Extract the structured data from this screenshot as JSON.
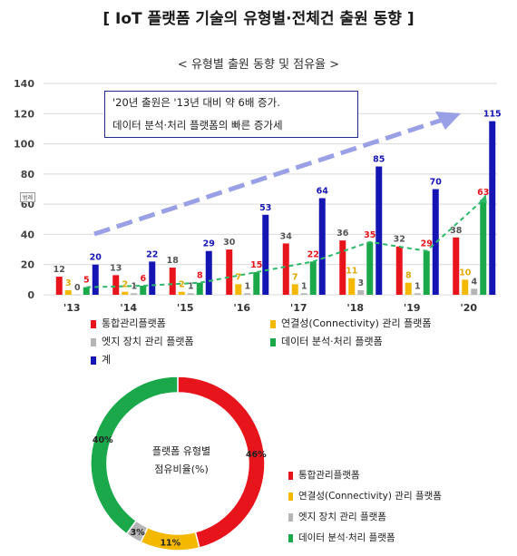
{
  "page": {
    "title": "[ IoT 플랫폼 기술의 유형별·전체건 출원 동향 ]",
    "subtitle": "< 유형별 출원 동향 및 점유율 >",
    "annotation_line1": "'20년 출원은 '13년 대비 약 6배 증가.",
    "annotation_line2": "데이터 분석·처리 플랫폼의 빠른 증가세",
    "small_tag": "범례",
    "pie_center_line1": "플랫폼 유형별",
    "pie_center_line2": "점유비율(%)"
  },
  "colors": {
    "integrated": "#e8141b",
    "connectivity": "#f5b800",
    "edge": "#b5b5b5",
    "analytics": "#1aa84a",
    "total": "#1515b4",
    "trend": "#2db86a",
    "arrow": "#9aa0e6"
  },
  "chart_data": [
    {
      "type": "bar",
      "categories": [
        "'13",
        "'14",
        "'15",
        "'16",
        "'17",
        "'18",
        "'19",
        "'20"
      ],
      "ylim": [
        0,
        140
      ],
      "yticks": [
        0,
        20,
        40,
        60,
        80,
        100,
        120,
        140
      ],
      "grid": true,
      "legend_position": "bottom",
      "series": [
        {
          "key": "integrated",
          "name": "통합관리플랫폼",
          "values": [
            12,
            13,
            18,
            30,
            34,
            36,
            32,
            38
          ]
        },
        {
          "key": "connectivity",
          "name": "연결성(Connectivity) 관리 플랫폼",
          "values": [
            3,
            2,
            2,
            7,
            7,
            11,
            8,
            10
          ]
        },
        {
          "key": "edge",
          "name": "엣지 장치 관리 플랫폼",
          "values": [
            0,
            1,
            1,
            1,
            1,
            3,
            1,
            4
          ]
        },
        {
          "key": "analytics",
          "name": "데이터 분석·처리 플랫폼",
          "values": [
            5,
            6,
            8,
            15,
            22,
            35,
            29,
            63
          ]
        },
        {
          "key": "total",
          "name": "계",
          "values": [
            20,
            22,
            29,
            53,
            64,
            85,
            70,
            115
          ]
        }
      ],
      "trend_series": "analytics"
    },
    {
      "type": "pie",
      "labels": [
        "통합관리플랫폼",
        "연결성(Connectivity) 관리 플랫폼",
        "엣지 장치 관리 플랫폼",
        "데이터 분석·처리 플랫폼"
      ],
      "keys": [
        "integrated",
        "connectivity",
        "edge",
        "analytics"
      ],
      "values": [
        46,
        11,
        3,
        40
      ],
      "value_labels": [
        "46%",
        "11%",
        "3%",
        "40%"
      ]
    }
  ]
}
